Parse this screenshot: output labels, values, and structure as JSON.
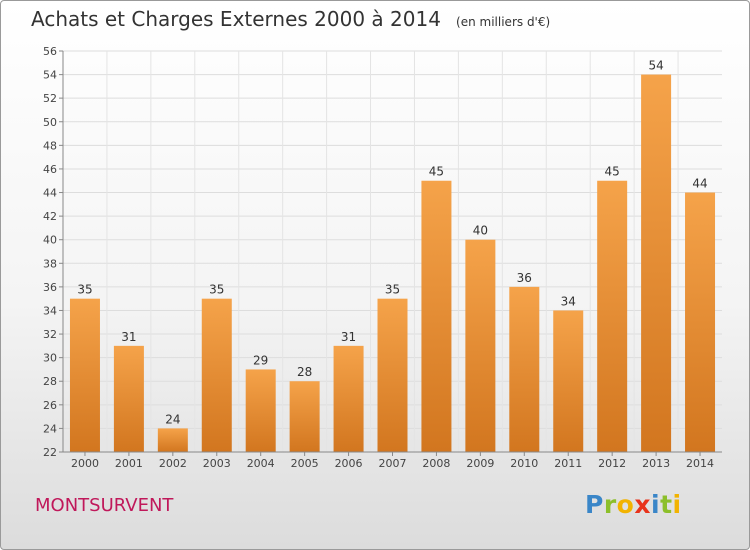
{
  "chart_data": {
    "type": "bar",
    "title": "Achats et Charges Externes 2000 à 2014",
    "subtitle": "(en milliers d'€)",
    "categories": [
      "2000",
      "2001",
      "2002",
      "2003",
      "2004",
      "2005",
      "2006",
      "2007",
      "2008",
      "2009",
      "2010",
      "2011",
      "2012",
      "2013",
      "2014"
    ],
    "values": [
      35,
      31,
      24,
      35,
      29,
      28,
      31,
      35,
      45,
      40,
      36,
      34,
      45,
      54,
      44
    ],
    "xlabel": "",
    "ylabel": "",
    "ylim": [
      22,
      56
    ],
    "yticks": [
      22,
      24,
      26,
      28,
      30,
      32,
      34,
      36,
      38,
      40,
      42,
      44,
      46,
      48,
      50,
      52,
      54,
      56
    ],
    "grid": true,
    "data_labels": true,
    "bar_color": "#f5a34a",
    "bar_color_dark": "#d2761f"
  },
  "commune": "MONTSURVENT",
  "logo": {
    "letters": [
      "P",
      "r",
      "o",
      "x",
      "i",
      "t",
      "i"
    ],
    "colors": [
      "#3a86c8",
      "#8cbf2a",
      "#f2b300",
      "#e8331b",
      "#3a86c8",
      "#8cbf2a",
      "#f2b300"
    ],
    "icon": "proxiti-logo"
  }
}
